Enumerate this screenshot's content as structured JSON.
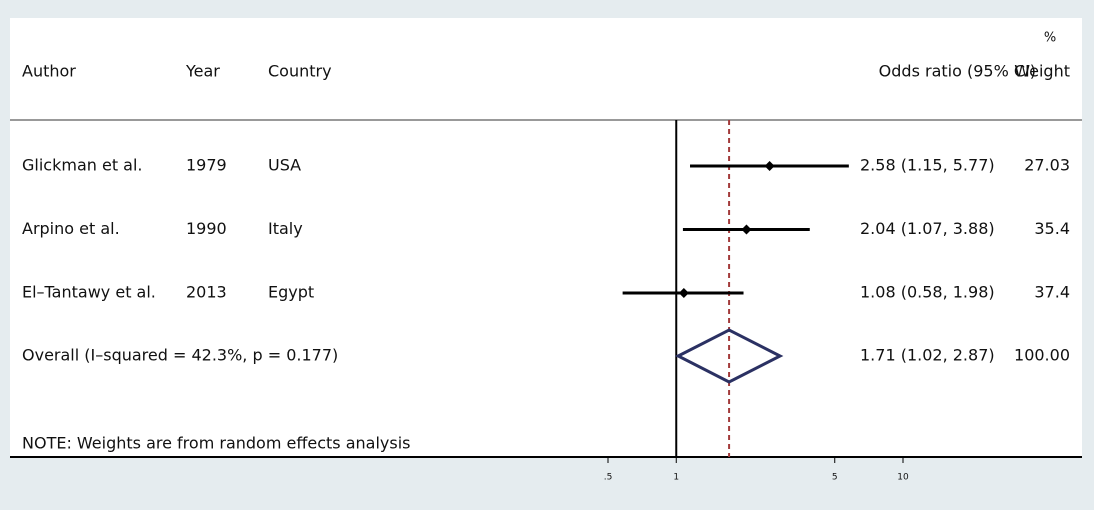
{
  "chart_data": {
    "type": "forest",
    "columns": {
      "author": "Author",
      "year": "Year",
      "country": "Country",
      "or": "Odds ratio (95% CI)",
      "weight_top": "%",
      "weight": "Weight"
    },
    "studies": [
      {
        "author": "Glickman et al.",
        "year": 1979,
        "country": "USA",
        "or": 2.58,
        "ci": [
          1.15,
          5.77
        ],
        "ci_label": "2.58 (1.15, 5.77)",
        "weight": 27.03
      },
      {
        "author": "Arpino et al.",
        "year": 1990,
        "country": "Italy",
        "or": 2.04,
        "ci": [
          1.07,
          3.88
        ],
        "ci_label": "2.04 (1.07, 3.88)",
        "weight": 35.4
      },
      {
        "author": "El–Tantawy et al.",
        "year": 2013,
        "country": "Egypt",
        "or": 1.08,
        "ci": [
          0.58,
          1.98
        ],
        "ci_label": "1.08 (0.58, 1.98)",
        "weight": 37.4
      }
    ],
    "overall": {
      "label": "Overall  (I–squared = 42.3%, p = 0.177)",
      "or": 1.71,
      "ci": [
        1.02,
        2.87
      ],
      "ci_label": "1.71 (1.02, 2.87)",
      "weight": 100,
      "weight_label": "100.00"
    },
    "note": "NOTE: Weights are from random effects analysis",
    "log_x": true,
    "null_value": 1,
    "xlim": [
      0.5,
      10
    ],
    "xticks": [
      {
        "value": 0.5,
        "label": ".5"
      },
      1,
      5,
      10
    ],
    "marker_color": "#000000",
    "diamond_color": "#2b3163",
    "overall_line_color": "#a33a3a"
  }
}
